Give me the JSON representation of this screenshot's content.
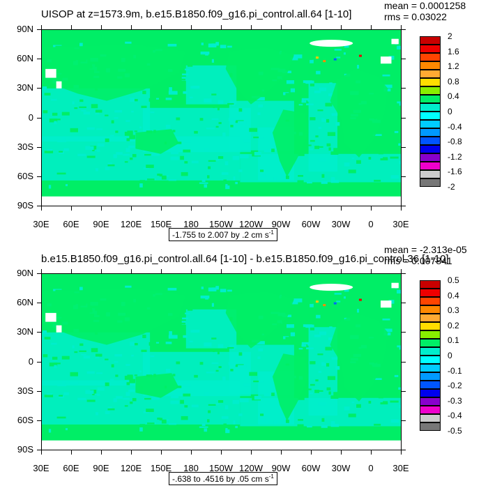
{
  "panels": [
    {
      "title": "UISOP at z=1573.9m, b.e15.B1850.f09_g16.pi_control.all.64 [1-10]",
      "mean_text": "mean = 0.0001258",
      "rms_text": "rms = 0.03022",
      "subtitle_text": "-1.755 to 2.007 by .2 cm s",
      "subtitle_unit_exp": "-1",
      "colorbar_labels": [
        "2",
        "1.6",
        "1.2",
        "0.8",
        "0.4",
        "0",
        "-0.4",
        "-0.8",
        "-1.2",
        "-1.6",
        "-2"
      ],
      "background_color": "#00ee66",
      "field_color": "#00eecc",
      "hotspot_colors": [
        "#ffcc00",
        "#ff8800",
        "#0066ff",
        "#ee0000"
      ]
    },
    {
      "title": "b.e15.B1850.f09_g16.pi_control.all.64 [1-10] - b.e15.B1850.f09_g16.pi_control.36 [1-10]",
      "mean_text": "mean = -2.313e-05",
      "rms_text": "rms = 0.007841",
      "subtitle_text": "-.638 to .4516 by .05 cm s",
      "subtitle_unit_exp": "-1",
      "colorbar_labels": [
        "0.5",
        "0.4",
        "0.3",
        "0.2",
        "0.1",
        "0",
        "-0.1",
        "-0.2",
        "-0.3",
        "-0.4",
        "-0.5"
      ],
      "background_color": "#00ee66",
      "field_color": "#00eecc",
      "hotspot_colors": [
        "#ffcc00",
        "#ff8800",
        "#0066ff",
        "#ee0000"
      ]
    }
  ],
  "axes": {
    "lat_ticks": [
      "90N",
      "60N",
      "30N",
      "0",
      "30S",
      "60S",
      "90S"
    ],
    "lon_ticks": [
      "30E",
      "60E",
      "90E",
      "120E",
      "150E",
      "180",
      "150W",
      "120W",
      "90W",
      "60W",
      "30W",
      "0",
      "30E"
    ]
  },
  "colorbar_colors": [
    "#c80000",
    "#ee0000",
    "#ff4400",
    "#ff8800",
    "#ffaa33",
    "#ffdd00",
    "#88ee00",
    "#00ee66",
    "#00eecc",
    "#00ffff",
    "#00ccff",
    "#0099ff",
    "#0055ff",
    "#0000ee",
    "#8800cc",
    "#ee00cc",
    "#cccccc",
    "#777777"
  ],
  "chart_data": [
    {
      "type": "heatmap",
      "title": "UISOP at z=1573.9m, b.e15.B1850.f09_g16.pi_control.all.64 [1-10]",
      "xlabel": "",
      "ylabel": "",
      "x_ticks": [
        "30E",
        "60E",
        "90E",
        "120E",
        "150E",
        "180",
        "150W",
        "120W",
        "90W",
        "60W",
        "30W",
        "0",
        "30E"
      ],
      "y_ticks": [
        "90N",
        "60N",
        "30N",
        "0",
        "30S",
        "60S",
        "90S"
      ],
      "colorbar_levels": [
        -2,
        -1.6,
        -1.2,
        -0.8,
        -0.4,
        0,
        0.4,
        0.8,
        1.2,
        1.6,
        2
      ],
      "range": [
        -1.755,
        2.007
      ],
      "contour_interval": 0.2,
      "units": "cm s-1",
      "mean": 0.0001258,
      "rms": 0.03022
    },
    {
      "type": "heatmap",
      "title": "b.e15.B1850.f09_g16.pi_control.all.64 [1-10] - b.e15.B1850.f09_g16.pi_control.36 [1-10]",
      "xlabel": "",
      "ylabel": "",
      "x_ticks": [
        "30E",
        "60E",
        "90E",
        "120E",
        "150E",
        "180",
        "150W",
        "120W",
        "90W",
        "60W",
        "30W",
        "0",
        "30E"
      ],
      "y_ticks": [
        "90N",
        "60N",
        "30N",
        "0",
        "30S",
        "60S",
        "90S"
      ],
      "colorbar_levels": [
        -0.5,
        -0.4,
        -0.3,
        -0.2,
        -0.1,
        0,
        0.1,
        0.2,
        0.3,
        0.4,
        0.5
      ],
      "range": [
        -0.638,
        0.4516
      ],
      "contour_interval": 0.05,
      "units": "cm s-1",
      "mean": -2.313e-05,
      "rms": 0.007841
    }
  ]
}
